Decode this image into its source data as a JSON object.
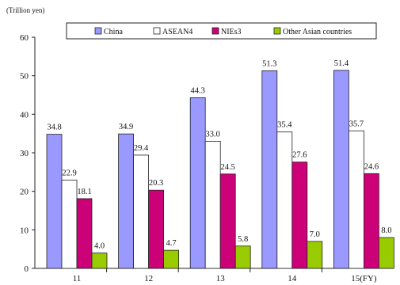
{
  "chart_data": {
    "type": "bar",
    "unit_label": "(Trillion  yen)",
    "categories": [
      "11",
      "12",
      "13",
      "14",
      "15(FY)"
    ],
    "series": [
      {
        "name": "China",
        "color": "#9999ff",
        "values": [
          34.8,
          34.9,
          44.3,
          51.3,
          51.4
        ]
      },
      {
        "name": "ASEAN4",
        "color": "#ffffff",
        "values": [
          22.9,
          29.4,
          33.0,
          35.4,
          35.7
        ]
      },
      {
        "name": "NIEs3",
        "color": "#cc0077",
        "values": [
          18.1,
          20.3,
          24.5,
          27.6,
          24.6
        ]
      },
      {
        "name": "Other Asian countries",
        "color": "#99cc00",
        "values": [
          4.0,
          4.7,
          5.8,
          7.0,
          8.0
        ]
      }
    ],
    "y_ticks": [
      "0",
      "10",
      "20",
      "30",
      "40",
      "50",
      "60"
    ],
    "ylim": [
      0,
      60
    ],
    "grid": false,
    "legend_position": "top"
  }
}
